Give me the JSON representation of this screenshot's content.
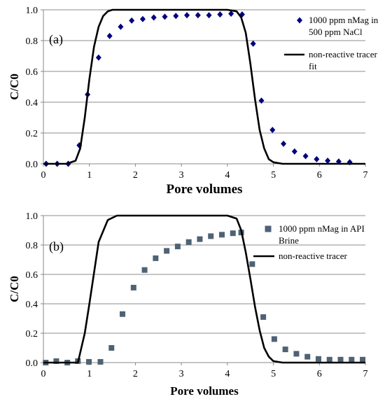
{
  "chart_data": [
    {
      "type": "scatter",
      "panel_label": "(a)",
      "xlabel": "Pore volumes",
      "ylabel": "C/C0",
      "xlim": [
        0,
        7
      ],
      "ylim": [
        0,
        1.0
      ],
      "xticks": [
        "0",
        "1",
        "2",
        "3",
        "4",
        "5",
        "6",
        "7"
      ],
      "yticks": [
        "0.0",
        "0.2",
        "0.4",
        "0.6",
        "0.8",
        "1.0"
      ],
      "grid": "horizontal",
      "legend_position": "top-right",
      "colors": {
        "points": "#00007f",
        "line": "#000000"
      },
      "series": [
        {
          "name": "1000 ppm nMag in 500 ppm NaCl",
          "marker": "diamond",
          "x": [
            0.06,
            0.3,
            0.54,
            0.78,
            0.96,
            1.2,
            1.44,
            1.68,
            1.92,
            2.16,
            2.4,
            2.64,
            2.88,
            3.12,
            3.36,
            3.6,
            3.84,
            4.08,
            4.32,
            4.56,
            4.74,
            4.98,
            5.22,
            5.46,
            5.7,
            5.94,
            6.18,
            6.42,
            6.66
          ],
          "y": [
            0.0,
            0.0,
            0.0,
            0.12,
            0.45,
            0.69,
            0.83,
            0.89,
            0.93,
            0.94,
            0.95,
            0.955,
            0.96,
            0.965,
            0.965,
            0.965,
            0.97,
            0.975,
            0.97,
            0.78,
            0.41,
            0.22,
            0.13,
            0.08,
            0.05,
            0.03,
            0.02,
            0.015,
            0.01
          ]
        },
        {
          "name": "non-reactive tracer fit",
          "marker": "line",
          "x": [
            0.0,
            0.5,
            0.7,
            0.8,
            0.9,
            1.0,
            1.1,
            1.2,
            1.3,
            1.4,
            1.5,
            1.7,
            2.0,
            3.0,
            4.0,
            4.2,
            4.3,
            4.4,
            4.5,
            4.6,
            4.7,
            4.8,
            4.9,
            5.0,
            5.2,
            5.5,
            7.0
          ],
          "y": [
            0.0,
            0.0,
            0.02,
            0.1,
            0.3,
            0.55,
            0.76,
            0.89,
            0.96,
            0.99,
            1.0,
            1.0,
            1.0,
            1.0,
            1.0,
            0.99,
            0.95,
            0.85,
            0.65,
            0.42,
            0.22,
            0.1,
            0.03,
            0.01,
            0.0,
            0.0,
            0.0
          ]
        }
      ]
    },
    {
      "type": "scatter",
      "panel_label": "(b)",
      "xlabel": "Pore volumes",
      "ylabel": "C/C0",
      "xlim": [
        0,
        7
      ],
      "ylim": [
        0,
        1.0
      ],
      "xticks": [
        "0",
        "1",
        "2",
        "3",
        "4",
        "5",
        "6",
        "7"
      ],
      "yticks": [
        "0.0",
        "0.2",
        "0.4",
        "0.6",
        "0.8",
        "1.0"
      ],
      "grid": "horizontal",
      "legend_position": "top-right",
      "colors": {
        "points": "#4f6274",
        "line": "#000000"
      },
      "series": [
        {
          "name": "1000 ppm nMag in API Brine",
          "marker": "square",
          "x": [
            0.05,
            0.28,
            0.52,
            0.75,
            0.99,
            1.24,
            1.48,
            1.72,
            1.96,
            2.2,
            2.44,
            2.68,
            2.92,
            3.16,
            3.4,
            3.64,
            3.88,
            4.12,
            4.3,
            4.54,
            4.78,
            5.02,
            5.26,
            5.5,
            5.74,
            5.98,
            6.22,
            6.46,
            6.7,
            6.94
          ],
          "y": [
            0.0,
            0.01,
            0.0,
            0.01,
            0.005,
            0.005,
            0.1,
            0.33,
            0.51,
            0.63,
            0.71,
            0.76,
            0.79,
            0.82,
            0.84,
            0.86,
            0.87,
            0.88,
            0.885,
            0.67,
            0.31,
            0.16,
            0.09,
            0.06,
            0.04,
            0.025,
            0.02,
            0.02,
            0.02,
            0.02
          ]
        },
        {
          "name": "non-reactive tracer",
          "marker": "line",
          "x": [
            0.0,
            0.75,
            0.9,
            1.0,
            1.2,
            1.4,
            1.6,
            2.0,
            3.0,
            4.0,
            4.2,
            4.3,
            4.4,
            4.5,
            4.6,
            4.7,
            4.8,
            4.9,
            5.0,
            5.2,
            7.0
          ],
          "y": [
            0.0,
            0.0,
            0.2,
            0.4,
            0.82,
            0.97,
            1.0,
            1.0,
            1.0,
            1.0,
            0.98,
            0.9,
            0.75,
            0.57,
            0.38,
            0.22,
            0.1,
            0.04,
            0.01,
            0.0,
            0.0
          ]
        }
      ]
    }
  ]
}
